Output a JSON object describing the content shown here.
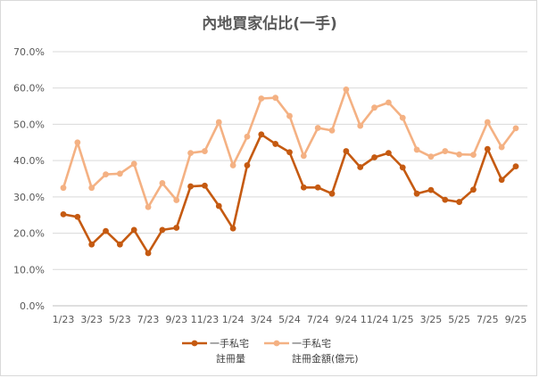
{
  "chart_data": {
    "type": "line",
    "title": "內地買家佔比(一手)",
    "x": [
      "1/23",
      "2/23",
      "3/23",
      "4/23",
      "5/23",
      "6/23",
      "7/23",
      "8/23",
      "9/23",
      "10/23",
      "11/23",
      "12/23",
      "1/24",
      "2/24",
      "3/24",
      "4/24",
      "5/24",
      "6/24",
      "7/24",
      "8/24",
      "9/24",
      "10/24",
      "11/24",
      "12/24",
      "1/25",
      "2/25",
      "3/25",
      "4/25",
      "5/25",
      "6/25",
      "7/25",
      "8/25",
      "9/25"
    ],
    "x_tick_labels": [
      "1/23",
      "",
      "3/23",
      "",
      "5/23",
      "",
      "7/23",
      "",
      "9/23",
      "",
      "11/23",
      "",
      "1/24",
      "",
      "3/24",
      "",
      "5/24",
      "",
      "7/24",
      "",
      "9/24",
      "",
      "11/24",
      "",
      "1/25",
      "",
      "3/25",
      "",
      "5/25",
      "",
      "7/25",
      "",
      "9/25"
    ],
    "y_ticks": [
      "0.0%",
      "10.0%",
      "20.0%",
      "30.0%",
      "40.0%",
      "50.0%",
      "60.0%",
      "70.0%"
    ],
    "ylim": [
      0,
      70
    ],
    "y_unit": "%",
    "grid": true,
    "legend_position": "bottom",
    "series": [
      {
        "name_line1": "一手私宅",
        "name_line2": "註冊量",
        "color": "#c55a11",
        "values": [
          25.2,
          24.5,
          16.9,
          20.6,
          16.9,
          20.9,
          14.5,
          20.9,
          21.5,
          32.9,
          33.1,
          27.5,
          21.3,
          38.7,
          47.2,
          44.6,
          42.3,
          32.6,
          32.6,
          30.9,
          42.6,
          38.2,
          40.9,
          42.1,
          38.1,
          30.9,
          31.9,
          29.2,
          28.6,
          32.0,
          43.2,
          34.7,
          38.4
        ]
      },
      {
        "name_line1": "一手私宅",
        "name_line2": "註冊金額(億元)",
        "color": "#f4b183",
        "values": [
          32.5,
          45.0,
          32.5,
          36.2,
          36.4,
          39.1,
          27.2,
          33.8,
          29.1,
          42.1,
          42.6,
          50.6,
          38.7,
          46.6,
          57.1,
          57.3,
          52.3,
          41.3,
          49.0,
          48.3,
          59.6,
          49.6,
          54.6,
          56.0,
          51.8,
          43.0,
          41.1,
          42.6,
          41.7,
          41.6,
          50.6,
          43.7,
          48.9
        ]
      }
    ]
  }
}
